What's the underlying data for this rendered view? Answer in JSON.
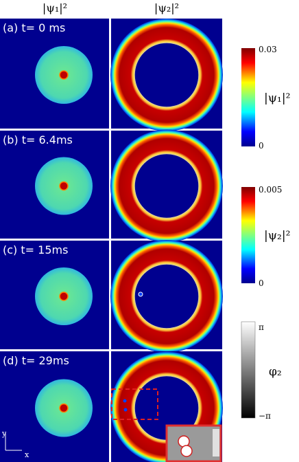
{
  "headers": [
    "|ψ₁|²",
    "|ψ₂|²"
  ],
  "panels": [
    "(a) t= 0 ms",
    "(b) t= 6.4ms",
    "(c) t= 15ms",
    "(d) t= 29ms"
  ],
  "colorbars": [
    {
      "max": "0.03",
      "min": "0",
      "label": "|ψ₁|²"
    },
    {
      "max": "0.005",
      "min": "0",
      "label": "|ψ₂|²"
    },
    {
      "max": "π",
      "min": "−π",
      "label": "φ₂"
    }
  ],
  "axes": {
    "y": "y",
    "x": "x"
  }
}
